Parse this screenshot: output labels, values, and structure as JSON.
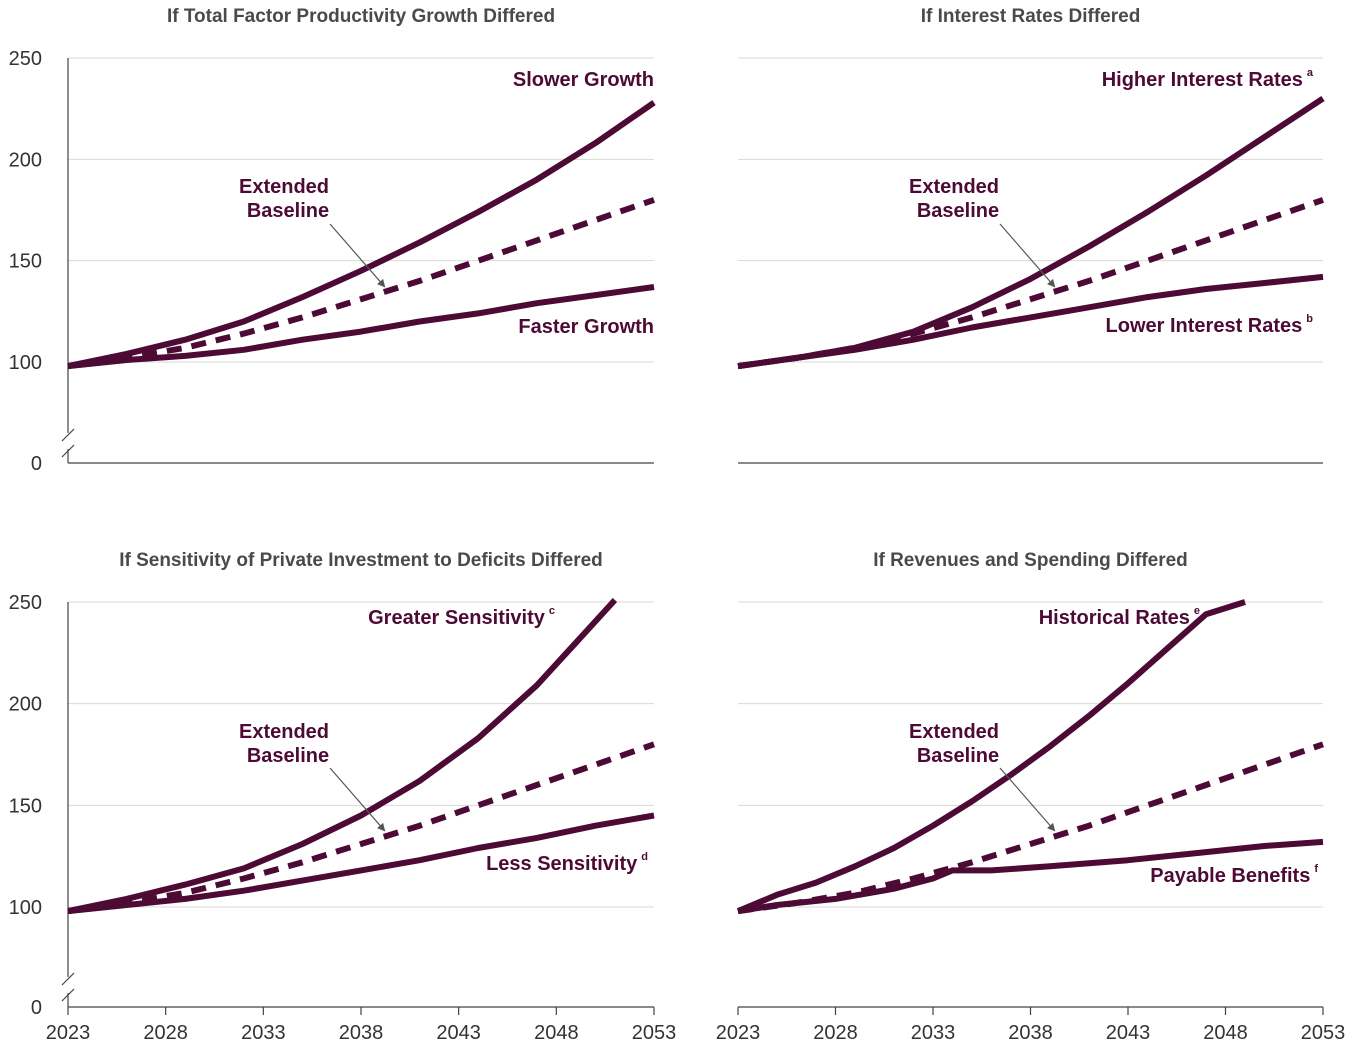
{
  "chart_data": [
    {
      "type": "line",
      "title": "If Total Factor Productivity Growth Differed",
      "xlim": [
        2023,
        2053
      ],
      "ylim": [
        0,
        250
      ],
      "yticks": [
        "0",
        "100",
        "150",
        "200",
        "250"
      ],
      "xticks": [],
      "grid": true,
      "axis_break": true,
      "series": [
        {
          "name": "Slower Growth",
          "style": "solid",
          "x": [
            2023,
            2026,
            2029,
            2032,
            2035,
            2038,
            2041,
            2044,
            2047,
            2050,
            2053
          ],
          "y": [
            98,
            104,
            111,
            120,
            132,
            145,
            159,
            174,
            190,
            208,
            228
          ]
        },
        {
          "name": "Extended Baseline",
          "style": "dashed",
          "x": [
            2023,
            2026,
            2029,
            2032,
            2035,
            2038,
            2041,
            2044,
            2047,
            2050,
            2053
          ],
          "y": [
            98,
            102,
            107,
            114,
            122,
            131,
            140,
            150,
            160,
            170,
            180
          ]
        },
        {
          "name": "Faster Growth",
          "style": "solid",
          "x": [
            2023,
            2026,
            2029,
            2032,
            2035,
            2038,
            2041,
            2044,
            2047,
            2050,
            2053
          ],
          "y": [
            98,
            101,
            103,
            106,
            111,
            115,
            120,
            124,
            129,
            133,
            137
          ]
        }
      ],
      "labels": [
        {
          "text": "Slower Growth",
          "sup": ""
        },
        {
          "text": "Faster Growth",
          "sup": ""
        },
        {
          "text": "Extended",
          "sup": ""
        },
        {
          "text": "Baseline",
          "sup": ""
        }
      ]
    },
    {
      "type": "line",
      "title": "If Interest Rates Differed",
      "xlim": [
        2023,
        2053
      ],
      "ylim": [
        0,
        250
      ],
      "yticks": [],
      "xticks": [],
      "grid": true,
      "axis_break": false,
      "series": [
        {
          "name": "Higher Interest Rates",
          "style": "solid",
          "x": [
            2023,
            2026,
            2029,
            2032,
            2035,
            2038,
            2041,
            2044,
            2047,
            2050,
            2053
          ],
          "y": [
            98,
            102,
            107,
            115,
            127,
            141,
            157,
            174,
            192,
            211,
            230
          ]
        },
        {
          "name": "Extended Baseline",
          "style": "dashed",
          "x": [
            2023,
            2026,
            2029,
            2032,
            2035,
            2038,
            2041,
            2044,
            2047,
            2050,
            2053
          ],
          "y": [
            98,
            102,
            107,
            114,
            122,
            131,
            140,
            150,
            160,
            170,
            180
          ]
        },
        {
          "name": "Lower Interest Rates",
          "style": "solid",
          "x": [
            2023,
            2026,
            2029,
            2032,
            2035,
            2038,
            2041,
            2044,
            2047,
            2050,
            2053
          ],
          "y": [
            98,
            102,
            106,
            111,
            117,
            122,
            127,
            132,
            136,
            139,
            142
          ]
        }
      ],
      "labels": [
        {
          "text": "Higher Interest Rates",
          "sup": "a"
        },
        {
          "text": "Lower Interest Rates",
          "sup": "b"
        },
        {
          "text": "Extended",
          "sup": ""
        },
        {
          "text": "Baseline",
          "sup": ""
        }
      ]
    },
    {
      "type": "line",
      "title": "If Sensitivity of Private Investment to Deficits Differed",
      "xlim": [
        2023,
        2053
      ],
      "ylim": [
        0,
        250
      ],
      "yticks": [
        "0",
        "100",
        "150",
        "200",
        "250"
      ],
      "xticks": [
        "2023",
        "2028",
        "2033",
        "2038",
        "2043",
        "2048",
        "2053"
      ],
      "grid": true,
      "axis_break": true,
      "series": [
        {
          "name": "Greater Sensitivity",
          "style": "solid",
          "x": [
            2023,
            2026,
            2029,
            2032,
            2035,
            2038,
            2041,
            2044,
            2047,
            2049,
            2051
          ],
          "y": [
            98,
            104,
            111,
            119,
            131,
            145,
            162,
            183,
            209,
            230,
            251
          ]
        },
        {
          "name": "Extended Baseline",
          "style": "dashed",
          "x": [
            2023,
            2026,
            2029,
            2032,
            2035,
            2038,
            2041,
            2044,
            2047,
            2050,
            2053
          ],
          "y": [
            98,
            102,
            107,
            114,
            122,
            131,
            140,
            150,
            160,
            170,
            180
          ]
        },
        {
          "name": "Less Sensitivity",
          "style": "solid",
          "x": [
            2023,
            2026,
            2029,
            2032,
            2035,
            2038,
            2041,
            2044,
            2047,
            2050,
            2053
          ],
          "y": [
            98,
            101,
            104,
            108,
            113,
            118,
            123,
            129,
            134,
            140,
            145
          ]
        }
      ],
      "labels": [
        {
          "text": "Greater Sensitivity",
          "sup": "c"
        },
        {
          "text": "Less Sensitivity",
          "sup": "d"
        },
        {
          "text": "Extended",
          "sup": ""
        },
        {
          "text": "Baseline",
          "sup": ""
        }
      ]
    },
    {
      "type": "line",
      "title": "If Revenues and Spending Differed",
      "xlim": [
        2023,
        2053
      ],
      "ylim": [
        0,
        250
      ],
      "yticks": [],
      "xticks": [
        "2023",
        "2028",
        "2033",
        "2038",
        "2043",
        "2048",
        "2053"
      ],
      "grid": true,
      "axis_break": false,
      "series": [
        {
          "name": "Historical Rates",
          "style": "solid",
          "x": [
            2023,
            2025,
            2027,
            2029,
            2031,
            2033,
            2035,
            2037,
            2039,
            2041,
            2043,
            2045,
            2047,
            2049
          ],
          "y": [
            98,
            106,
            112,
            120,
            129,
            140,
            152,
            165,
            179,
            194,
            210,
            227,
            244,
            250
          ]
        },
        {
          "name": "Extended Baseline",
          "style": "dashed",
          "x": [
            2023,
            2026,
            2029,
            2032,
            2035,
            2038,
            2041,
            2044,
            2047,
            2050,
            2053
          ],
          "y": [
            98,
            102,
            107,
            114,
            122,
            131,
            140,
            150,
            160,
            170,
            180
          ]
        },
        {
          "name": "Payable Benefits",
          "style": "solid",
          "x": [
            2023,
            2025,
            2028,
            2031,
            2033,
            2034,
            2036,
            2039,
            2043,
            2047,
            2050,
            2053
          ],
          "y": [
            98,
            101,
            104,
            109,
            114,
            118,
            118,
            120,
            123,
            127,
            130,
            132
          ]
        }
      ],
      "labels": [
        {
          "text": "Historical Rates",
          "sup": "e"
        },
        {
          "text": "Payable Benefits",
          "sup": "f"
        },
        {
          "text": "Extended",
          "sup": ""
        },
        {
          "text": "Baseline",
          "sup": ""
        }
      ]
    }
  ],
  "colors": {
    "series": "#4c0a35",
    "grid": "#d9d9d9",
    "axis": "#444444",
    "title": "#4a4a4a",
    "arrow": "#555555"
  }
}
